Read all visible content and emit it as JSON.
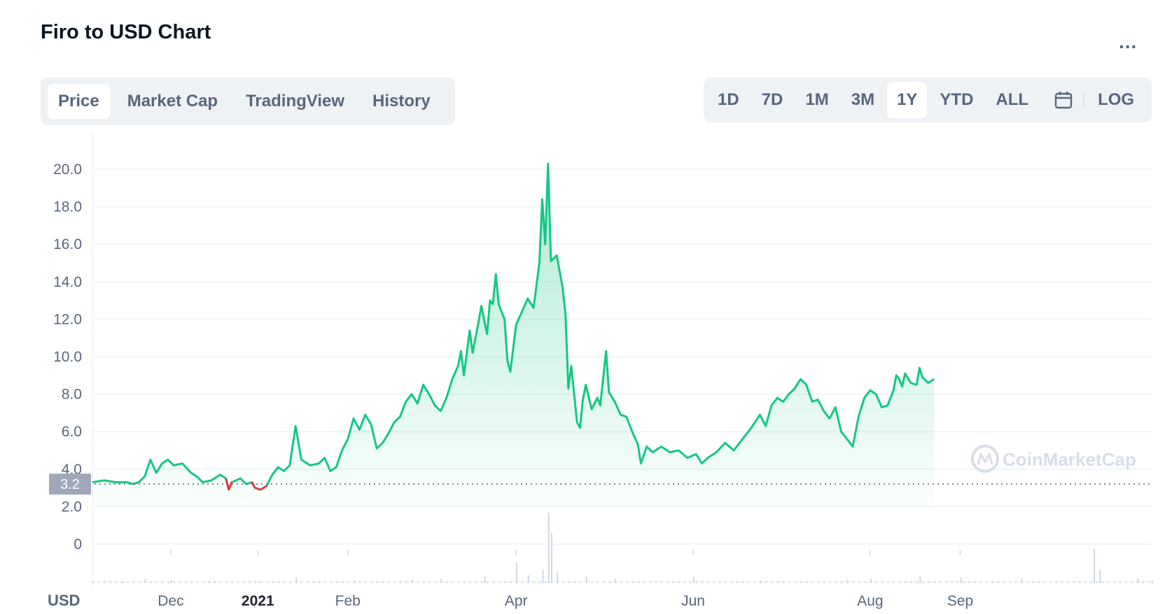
{
  "header": {
    "title": "Firo to USD Chart",
    "more_label": "..."
  },
  "tabs": [
    {
      "label": "Price",
      "active": true
    },
    {
      "label": "Market Cap",
      "active": false
    },
    {
      "label": "TradingView",
      "active": false
    },
    {
      "label": "History",
      "active": false
    }
  ],
  "ranges": [
    {
      "label": "1D",
      "active": false
    },
    {
      "label": "7D",
      "active": false
    },
    {
      "label": "1M",
      "active": false
    },
    {
      "label": "3M",
      "active": false
    },
    {
      "label": "1Y",
      "active": true
    },
    {
      "label": "YTD",
      "active": false
    },
    {
      "label": "ALL",
      "active": false
    }
  ],
  "calendar_icon": "calendar-icon",
  "log_label": "LOG",
  "watermark": "CoinMarketCap",
  "colors": {
    "up": "#16c784",
    "down": "#ea3943",
    "grid": "#eff2f5",
    "axis_text": "#58667e",
    "badge": "#a1a7bb"
  },
  "chart_data": {
    "type": "area",
    "title": "Firo to USD Chart",
    "ylabel": "",
    "xlabel": "",
    "unit_label": "USD",
    "ylim": [
      0,
      20.0
    ],
    "y_ticks": [
      "20.0",
      "18.0",
      "16.0",
      "14.0",
      "12.0",
      "10.0",
      "8.0",
      "6.0",
      "4.0",
      "2.0",
      "0"
    ],
    "y_tick_values": [
      20,
      18,
      16,
      14,
      12,
      10,
      8,
      6,
      4,
      2,
      0
    ],
    "x_ticks": [
      {
        "label": "Dec",
        "day": 27,
        "bold": false
      },
      {
        "label": "2021",
        "day": 57,
        "bold": true
      },
      {
        "label": "Feb",
        "day": 88,
        "bold": false
      },
      {
        "label": "Apr",
        "day": 146,
        "bold": false
      },
      {
        "label": "Jun",
        "day": 207,
        "bold": false
      },
      {
        "label": "Aug",
        "day": 268,
        "bold": false
      },
      {
        "label": "Sep",
        "day": 299,
        "bold": false
      }
    ],
    "x_range_days": [
      0,
      365
    ],
    "current_price": 3.2,
    "current_price_label": "3.2",
    "grid": true,
    "series": [
      {
        "values": [
          [
            0,
            3.3
          ],
          [
            4,
            3.4
          ],
          [
            8,
            3.3
          ],
          [
            12,
            3.3
          ],
          [
            14,
            3.2
          ],
          [
            16,
            3.3
          ],
          [
            18,
            3.6
          ],
          [
            20,
            4.5
          ],
          [
            22,
            3.8
          ],
          [
            24,
            4.3
          ],
          [
            26,
            4.5
          ],
          [
            28,
            4.2
          ],
          [
            31,
            4.3
          ],
          [
            34,
            3.8
          ],
          [
            36,
            3.6
          ],
          [
            38,
            3.3
          ],
          [
            41,
            3.4
          ],
          [
            44,
            3.7
          ],
          [
            46,
            3.5
          ],
          [
            47,
            2.9
          ],
          [
            48,
            3.3
          ],
          [
            51,
            3.5
          ],
          [
            53,
            3.2
          ],
          [
            55,
            3.3
          ],
          [
            56,
            3.0
          ],
          [
            58,
            2.9
          ],
          [
            60,
            3.1
          ],
          [
            62,
            3.7
          ],
          [
            64,
            4.1
          ],
          [
            66,
            3.9
          ],
          [
            68,
            4.2
          ],
          [
            70,
            6.3
          ],
          [
            72,
            4.5
          ],
          [
            75,
            4.2
          ],
          [
            78,
            4.3
          ],
          [
            80,
            4.6
          ],
          [
            82,
            3.9
          ],
          [
            84,
            4.1
          ],
          [
            86,
            5.0
          ],
          [
            88,
            5.6
          ],
          [
            90,
            6.7
          ],
          [
            92,
            6.1
          ],
          [
            94,
            6.9
          ],
          [
            96,
            6.4
          ],
          [
            98,
            5.1
          ],
          [
            100,
            5.4
          ],
          [
            102,
            5.9
          ],
          [
            104,
            6.5
          ],
          [
            106,
            6.8
          ],
          [
            108,
            7.6
          ],
          [
            110,
            8.0
          ],
          [
            112,
            7.5
          ],
          [
            114,
            8.5
          ],
          [
            116,
            8.0
          ],
          [
            118,
            7.4
          ],
          [
            120,
            7.1
          ],
          [
            122,
            7.8
          ],
          [
            124,
            8.8
          ],
          [
            126,
            9.5
          ],
          [
            127,
            10.3
          ],
          [
            128,
            9.0
          ],
          [
            130,
            11.4
          ],
          [
            131,
            10.2
          ],
          [
            133,
            11.8
          ],
          [
            134,
            12.7
          ],
          [
            136,
            11.2
          ],
          [
            137,
            13.0
          ],
          [
            138,
            12.8
          ],
          [
            139,
            14.4
          ],
          [
            140,
            12.8
          ],
          [
            142,
            12.0
          ],
          [
            143,
            9.8
          ],
          [
            144,
            9.2
          ],
          [
            146,
            11.7
          ],
          [
            148,
            12.4
          ],
          [
            150,
            13.1
          ],
          [
            152,
            12.6
          ],
          [
            154,
            15.0
          ],
          [
            155,
            18.4
          ],
          [
            156,
            16.0
          ],
          [
            157,
            20.3
          ],
          [
            158,
            15.1
          ],
          [
            160,
            15.4
          ],
          [
            162,
            13.7
          ],
          [
            163,
            12.3
          ],
          [
            164,
            8.3
          ],
          [
            165,
            9.5
          ],
          [
            167,
            6.5
          ],
          [
            168,
            6.2
          ],
          [
            169,
            7.7
          ],
          [
            170,
            8.5
          ],
          [
            172,
            7.2
          ],
          [
            174,
            7.8
          ],
          [
            175,
            7.4
          ],
          [
            177,
            10.3
          ],
          [
            178,
            8.1
          ],
          [
            180,
            7.6
          ],
          [
            182,
            6.9
          ],
          [
            184,
            6.8
          ],
          [
            186,
            6.0
          ],
          [
            188,
            5.3
          ],
          [
            189,
            4.3
          ],
          [
            191,
            5.2
          ],
          [
            193,
            4.9
          ],
          [
            196,
            5.2
          ],
          [
            199,
            4.9
          ],
          [
            202,
            5.0
          ],
          [
            205,
            4.6
          ],
          [
            208,
            4.8
          ],
          [
            210,
            4.3
          ],
          [
            212,
            4.6
          ],
          [
            215,
            4.9
          ],
          [
            218,
            5.4
          ],
          [
            221,
            5.0
          ],
          [
            224,
            5.6
          ],
          [
            227,
            6.2
          ],
          [
            230,
            6.9
          ],
          [
            232,
            6.3
          ],
          [
            234,
            7.4
          ],
          [
            236,
            7.8
          ],
          [
            238,
            7.6
          ],
          [
            240,
            8.0
          ],
          [
            242,
            8.3
          ],
          [
            244,
            8.8
          ],
          [
            246,
            8.5
          ],
          [
            248,
            7.6
          ],
          [
            250,
            7.7
          ],
          [
            252,
            7.1
          ],
          [
            254,
            6.7
          ],
          [
            256,
            7.3
          ],
          [
            258,
            6.0
          ],
          [
            260,
            5.6
          ],
          [
            262,
            5.2
          ],
          [
            264,
            6.8
          ],
          [
            266,
            7.8
          ],
          [
            268,
            8.2
          ],
          [
            270,
            8.0
          ],
          [
            272,
            7.3
          ],
          [
            274,
            7.4
          ],
          [
            276,
            8.2
          ],
          [
            277,
            9.0
          ],
          [
            278,
            8.8
          ],
          [
            279,
            8.4
          ],
          [
            280,
            9.1
          ],
          [
            282,
            8.6
          ],
          [
            284,
            8.5
          ],
          [
            285,
            9.4
          ],
          [
            286,
            8.9
          ],
          [
            288,
            8.6
          ],
          [
            290,
            8.8
          ]
        ]
      }
    ],
    "volume": [
      [
        0,
        0.05
      ],
      [
        10,
        0.08
      ],
      [
        18,
        0.2
      ],
      [
        27,
        0.15
      ],
      [
        40,
        0.1
      ],
      [
        57,
        0.08
      ],
      [
        70,
        0.25
      ],
      [
        90,
        0.12
      ],
      [
        110,
        0.15
      ],
      [
        120,
        0.2
      ],
      [
        135,
        0.3
      ],
      [
        146,
        0.9
      ],
      [
        150,
        0.35
      ],
      [
        155,
        0.6
      ],
      [
        157,
        3.1
      ],
      [
        158,
        2.2
      ],
      [
        160,
        0.5
      ],
      [
        170,
        0.3
      ],
      [
        180,
        0.2
      ],
      [
        207,
        0.3
      ],
      [
        230,
        0.12
      ],
      [
        260,
        0.15
      ],
      [
        268,
        0.2
      ],
      [
        285,
        0.3
      ],
      [
        299,
        0.25
      ],
      [
        320,
        0.2
      ],
      [
        345,
        1.5
      ],
      [
        347,
        0.6
      ],
      [
        360,
        0.2
      ],
      [
        365,
        0.1
      ]
    ]
  }
}
